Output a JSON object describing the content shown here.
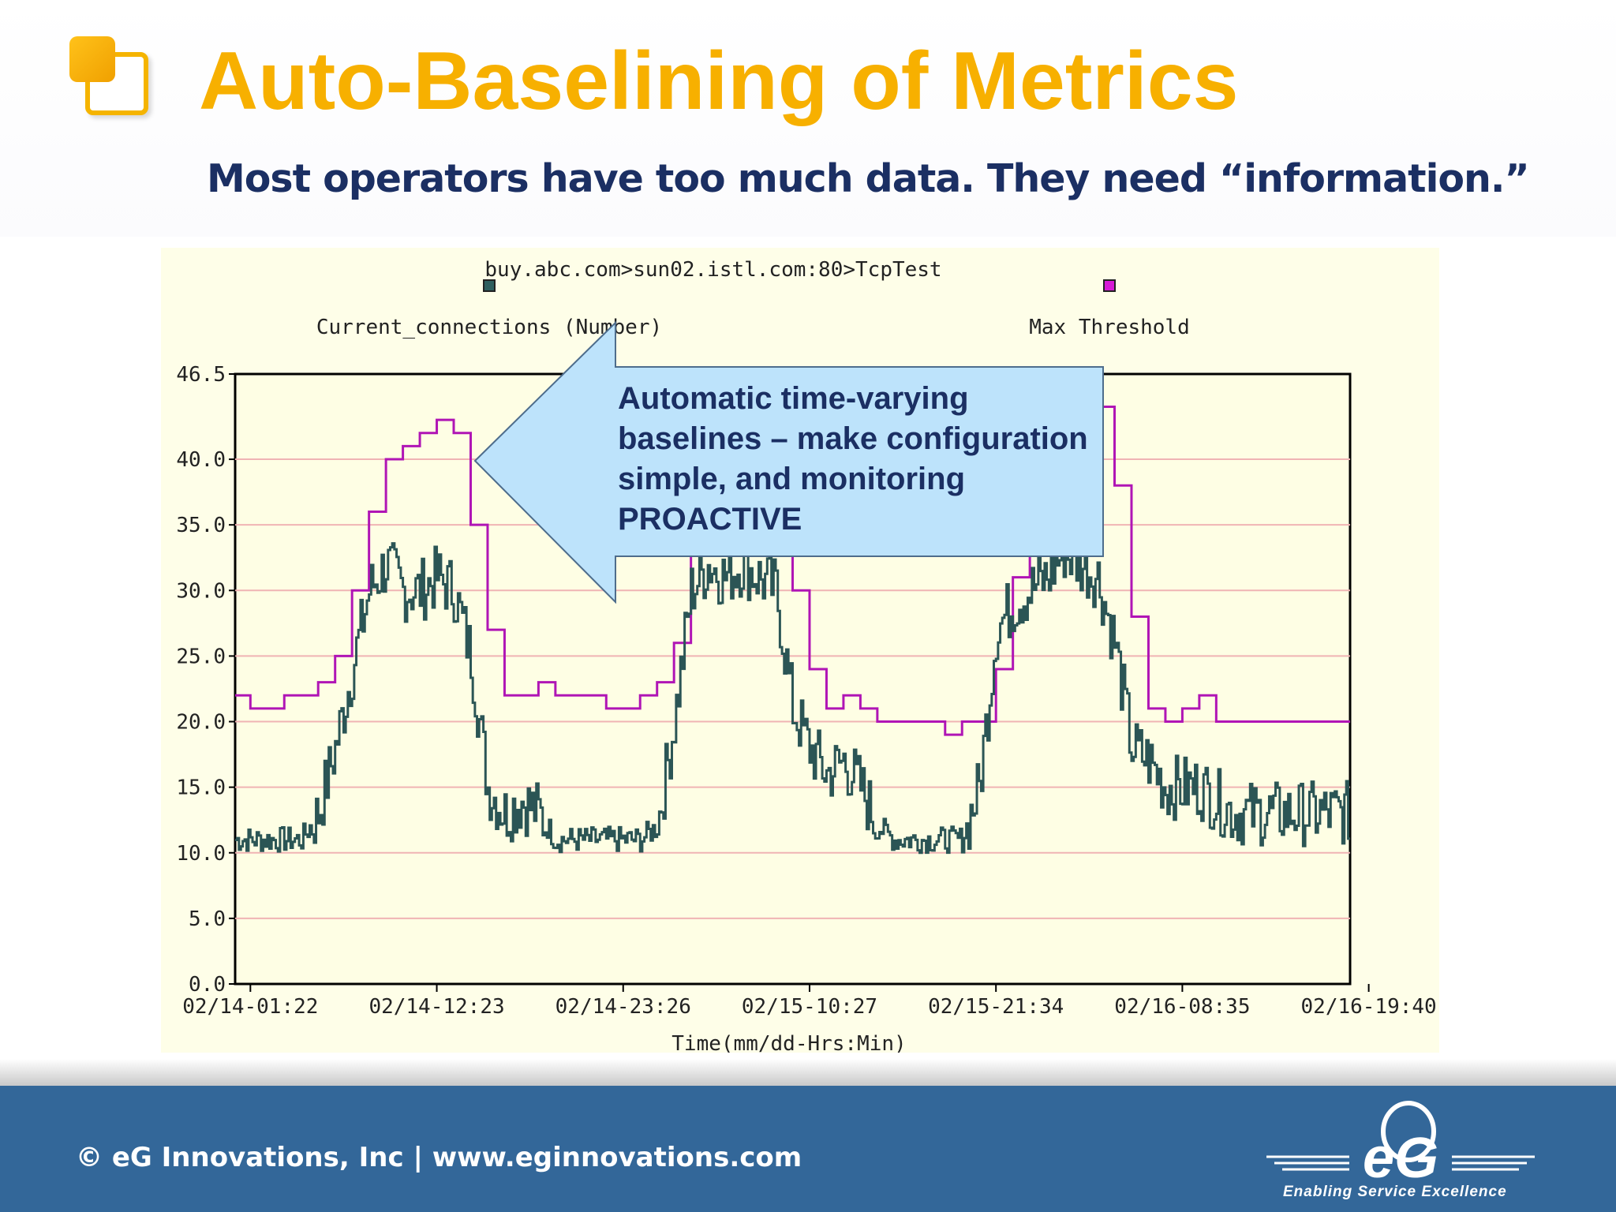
{
  "slide": {
    "title": "Auto-Baselining of Metrics",
    "subtitle": "Most operators have too much data. They need “information.”"
  },
  "callout": {
    "lines": [
      "Automatic time-varying",
      "baselines – make configuration",
      "simple, and monitoring",
      "PROACTIVE"
    ],
    "fill": "#bde3fb",
    "stroke": "#4e6d8c"
  },
  "footer": {
    "copyright": "© eG Innovations, Inc  |  www.eginnovations.com",
    "logo_text": "eG",
    "tagline": "Enabling Service Excellence",
    "background": "#336799"
  },
  "chart_data": {
    "type": "line",
    "title": "buy.abc.com>sun02.istl.com:80>TcpTest",
    "xlabel": "Time(mm/dd-Hrs:Min)",
    "ylabel": "",
    "ylim": [
      0,
      46.5
    ],
    "xlim": [
      -0.9,
      64.9
    ],
    "yticks": [
      "0.0",
      "5.0",
      "10.0",
      "15.0",
      "20.0",
      "25.0",
      "30.0",
      "35.0",
      "40.0",
      "46.5"
    ],
    "xticks": [
      "02/14-01:22",
      "02/14-12:23",
      "02/14-23:26",
      "02/15-10:27",
      "02/15-21:34",
      "02/16-08:35",
      "02/16-19:40"
    ],
    "grid": true,
    "legend_position": "top",
    "series": [
      {
        "name": "Current_connections (Number)",
        "color": "#2b5555",
        "marker_color": "#2e5f5f",
        "x": [
          -0.9,
          0,
          1,
          2,
          3,
          4,
          5,
          6,
          7,
          8,
          9,
          10,
          11,
          12,
          13,
          14,
          15,
          16,
          17,
          18,
          19,
          20,
          21,
          22,
          23,
          24,
          25,
          26,
          27,
          28,
          29,
          30,
          31,
          32,
          33,
          34,
          35,
          36,
          37,
          38,
          39,
          40,
          41,
          42,
          43,
          44,
          45,
          46,
          47,
          48,
          49,
          50,
          51,
          52,
          53,
          54,
          55,
          56,
          57,
          58,
          59,
          60,
          61,
          62,
          63,
          64,
          64.9
        ],
        "y": [
          11,
          11,
          11,
          11,
          11,
          13,
          18,
          24,
          30,
          32,
          30,
          30,
          31,
          30,
          25,
          15,
          13,
          14,
          13,
          11,
          11,
          11,
          11,
          11,
          11,
          12,
          20,
          30,
          32,
          31,
          32,
          31,
          30,
          21,
          18,
          16,
          17,
          15,
          12,
          11,
          11,
          11,
          11,
          11,
          15,
          27,
          29,
          30,
          31,
          33,
          32,
          31,
          26,
          18,
          17,
          15,
          15,
          15,
          14,
          13,
          13,
          13,
          13,
          13,
          13,
          13,
          13
        ],
        "noise": 2.5
      },
      {
        "name": "Max Threshold",
        "color": "#b015b5",
        "marker_color": "#d61ad6",
        "x": [
          -0.9,
          0,
          1,
          2,
          3,
          4,
          5,
          6,
          7,
          8,
          9,
          10,
          11,
          12,
          13,
          14,
          15,
          16,
          17,
          18,
          19,
          20,
          21,
          22,
          23,
          24,
          25,
          26,
          27,
          28,
          29,
          30,
          31,
          32,
          33,
          34,
          35,
          36,
          37,
          38,
          39,
          40,
          41,
          42,
          43,
          44,
          45,
          46,
          47,
          48,
          49,
          50,
          51,
          52,
          53,
          54,
          55,
          56,
          57,
          58,
          59,
          60,
          61,
          62,
          63,
          64,
          64.9
        ],
        "y": [
          22,
          21,
          21,
          22,
          22,
          23,
          25,
          30,
          36,
          40,
          41,
          42,
          43,
          42,
          35,
          27,
          22,
          22,
          23,
          22,
          22,
          22,
          21,
          21,
          22,
          23,
          26,
          33,
          37,
          38,
          38,
          38,
          35,
          30,
          24,
          21,
          22,
          21,
          20,
          20,
          20,
          20,
          19,
          20,
          20,
          24,
          31,
          38,
          40,
          40,
          42,
          44,
          38,
          28,
          21,
          20,
          21,
          22,
          20,
          20,
          20,
          20,
          20,
          20,
          20,
          20,
          20
        ]
      }
    ]
  }
}
